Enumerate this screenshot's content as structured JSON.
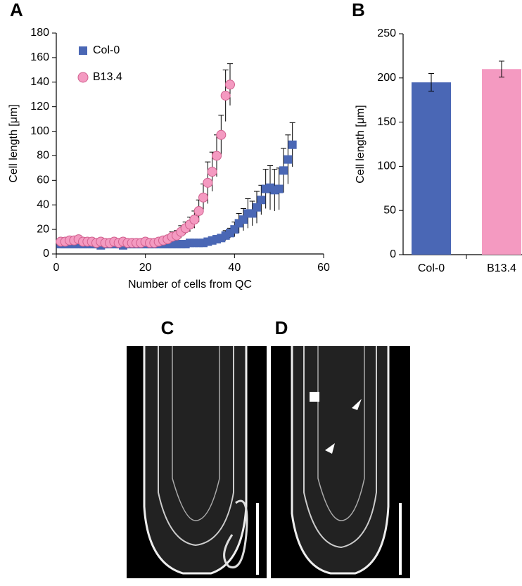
{
  "chart_data": [
    {
      "type": "scatter",
      "panel": "A",
      "x_label": "Number of cells from QC",
      "y_label": "Cell length [μm]",
      "xlim": [
        0,
        60
      ],
      "xticks": [
        0,
        20,
        40,
        60
      ],
      "ylim": [
        0,
        180
      ],
      "yticks": [
        0,
        20,
        40,
        60,
        80,
        100,
        120,
        140,
        160,
        180
      ],
      "legend": "top-left",
      "series": [
        {
          "name": "Col-0",
          "color": "#4a67b5",
          "marker": "square",
          "x": [
            1,
            2,
            3,
            4,
            5,
            6,
            7,
            8,
            9,
            10,
            11,
            12,
            13,
            14,
            15,
            16,
            17,
            18,
            19,
            20,
            21,
            22,
            23,
            24,
            25,
            26,
            27,
            28,
            29,
            30,
            31,
            32,
            33,
            34,
            35,
            36,
            37,
            38,
            39,
            40,
            41,
            42,
            43,
            44,
            45,
            46,
            47,
            48,
            49,
            50,
            51,
            52,
            53
          ],
          "values": [
            8,
            8,
            8,
            8,
            8,
            8,
            8,
            8,
            8,
            7,
            8,
            8,
            8,
            8,
            7,
            8,
            8,
            8,
            8,
            8,
            8,
            8,
            8,
            8,
            8,
            8,
            8,
            8,
            8,
            9,
            9,
            9,
            9,
            10,
            11,
            12,
            13,
            15,
            17,
            20,
            25,
            28,
            33,
            33,
            38,
            44,
            53,
            54,
            52,
            53,
            68,
            77,
            89
          ],
          "errors": [
            1,
            1,
            1,
            1,
            1,
            1,
            1,
            1,
            1,
            1,
            1,
            1,
            1,
            1,
            1,
            1,
            1,
            1,
            1,
            1,
            1,
            1,
            1,
            1,
            1,
            1,
            1,
            1,
            2,
            2,
            2,
            2,
            2,
            2,
            3,
            3,
            3,
            4,
            4,
            6,
            8,
            9,
            12,
            10,
            13,
            12,
            16,
            18,
            17,
            17,
            18,
            20,
            18
          ]
        },
        {
          "name": "B13.4",
          "color": "#f49ac1",
          "marker": "circle",
          "x": [
            1,
            2,
            3,
            4,
            5,
            6,
            7,
            8,
            9,
            10,
            11,
            12,
            13,
            14,
            15,
            16,
            17,
            18,
            19,
            20,
            21,
            22,
            23,
            24,
            25,
            26,
            27,
            28,
            29,
            30,
            31,
            32,
            33,
            34,
            35,
            36,
            37,
            38,
            39
          ],
          "values": [
            10,
            10,
            11,
            11,
            12,
            10,
            10,
            10,
            9,
            10,
            9,
            9,
            10,
            9,
            10,
            9,
            9,
            9,
            9,
            10,
            9,
            9,
            10,
            11,
            12,
            14,
            15,
            18,
            21,
            24,
            28,
            35,
            46,
            58,
            67,
            80,
            97,
            129,
            138
          ],
          "errors": [
            2,
            2,
            2,
            2,
            2,
            2,
            2,
            2,
            2,
            2,
            2,
            2,
            2,
            2,
            2,
            2,
            2,
            2,
            2,
            2,
            2,
            2,
            2,
            3,
            3,
            4,
            4,
            5,
            5,
            6,
            7,
            9,
            11,
            17,
            16,
            17,
            16,
            21,
            17
          ]
        }
      ]
    },
    {
      "type": "bar",
      "panel": "B",
      "y_label": "Cell length [μm]",
      "categories": [
        "Col-0",
        "B13.4"
      ],
      "values": [
        195,
        210
      ],
      "errors": [
        10,
        9
      ],
      "colors": [
        "#4a67b5",
        "#f49ac1"
      ],
      "ylim": [
        0,
        250
      ],
      "yticks": [
        0,
        50,
        100,
        150,
        200,
        250
      ]
    }
  ],
  "images": [
    {
      "panel": "C"
    },
    {
      "panel": "D"
    }
  ]
}
